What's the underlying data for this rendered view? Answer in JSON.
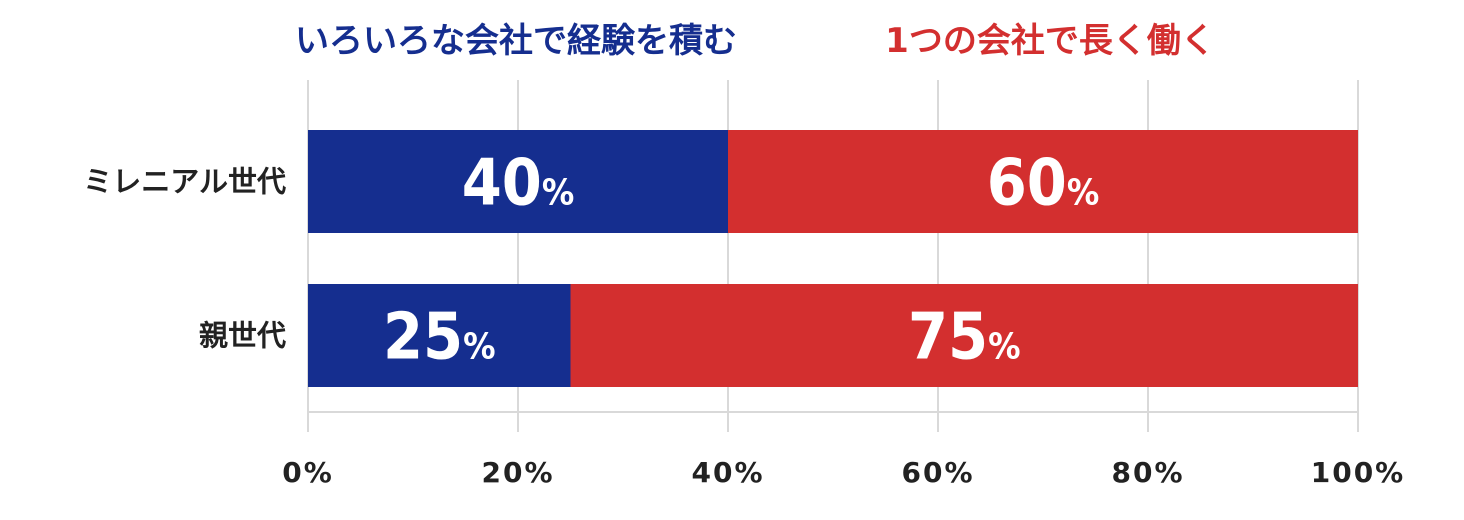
{
  "chart_data": {
    "type": "bar",
    "orientation": "horizontal",
    "stacked": true,
    "categories": [
      "ミレニアル世代",
      "親世代"
    ],
    "series": [
      {
        "name": "いろいろな会社で経験を積む",
        "values": [
          40,
          25
        ],
        "color": "#152e8f"
      },
      {
        "name": "1つの会社で長く働く",
        "values": [
          60,
          75
        ],
        "color": "#d32f2f"
      }
    ],
    "value_unit": "%",
    "xlim": [
      0,
      100
    ],
    "xticks": [
      0,
      20,
      40,
      60,
      80,
      100
    ],
    "tick_labels": [
      "0%",
      "20%",
      "40%",
      "60%",
      "80%",
      "100%"
    ],
    "grid": true,
    "legend_position": "top",
    "title": "",
    "xlabel": "",
    "ylabel": ""
  }
}
